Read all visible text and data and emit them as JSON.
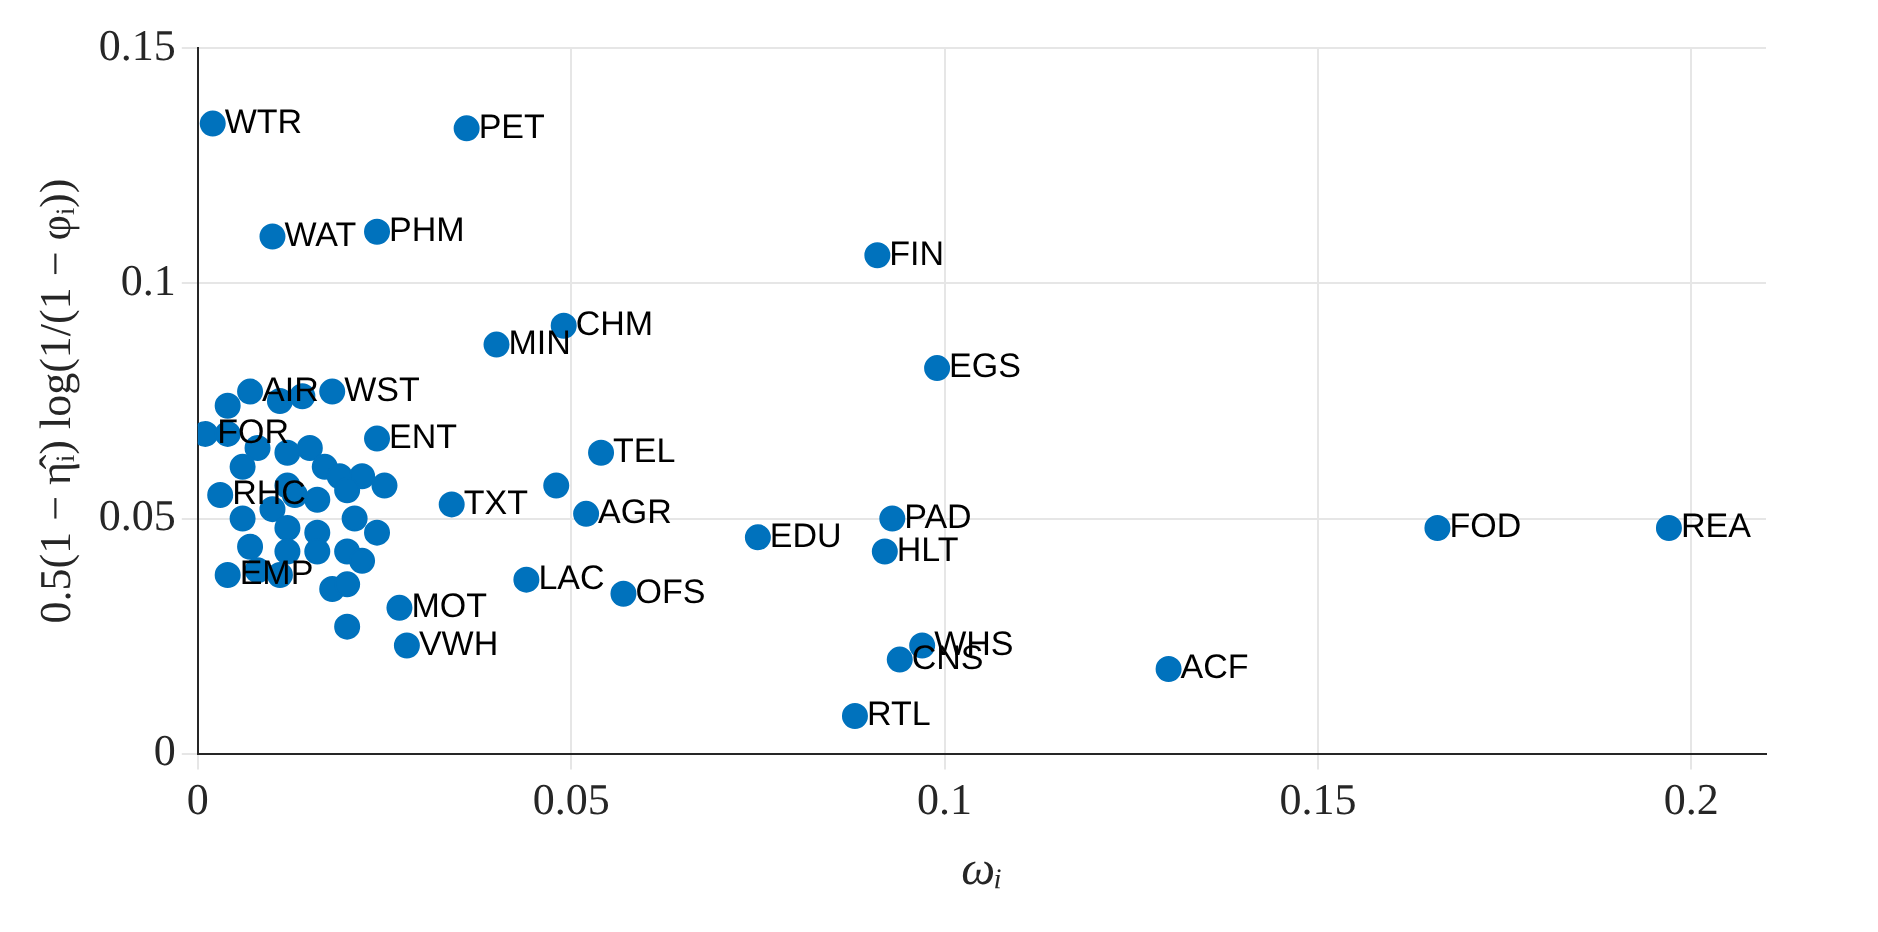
{
  "chart_data": {
    "type": "scatter",
    "xlabel": "ωᵢ",
    "ylabel": "0.5(1 − η̂ᵢ) log(1/(1 − φᵢ))",
    "x": [
      0.002,
      0.036,
      0.01,
      0.024,
      0.091,
      0.049,
      0.04,
      0.099,
      0.018,
      0.054,
      0.048,
      0.052,
      0.034,
      0.093,
      0.075,
      0.092,
      0.166,
      0.197,
      0.044,
      0.057,
      0.027,
      0.02,
      0.028,
      0.097,
      0.094,
      0.13,
      0.088,
      0.004,
      0.003,
      0.001,
      0.024,
      0.007,
      0.004,
      0.011,
      0.014,
      0.004,
      0.006,
      0.008,
      0.012,
      0.015,
      0.017,
      0.019,
      0.022,
      0.012,
      0.013,
      0.016,
      0.02,
      0.025,
      0.006,
      0.01,
      0.012,
      0.016,
      0.021,
      0.024,
      0.007,
      0.012,
      0.016,
      0.02,
      0.022,
      0.008,
      0.011,
      0.018,
      0.02
    ],
    "values": [
      0.134,
      0.133,
      0.11,
      0.111,
      0.106,
      0.091,
      0.087,
      0.082,
      0.077,
      0.064,
      0.057,
      0.051,
      0.053,
      0.05,
      0.046,
      0.043,
      0.048,
      0.048,
      0.037,
      0.034,
      0.031,
      0.027,
      0.023,
      0.023,
      0.02,
      0.018,
      0.008,
      0.038,
      0.055,
      0.068,
      0.067,
      0.077,
      0.074,
      0.075,
      0.076,
      0.068,
      0.061,
      0.065,
      0.064,
      0.065,
      0.061,
      0.059,
      0.059,
      0.057,
      0.055,
      0.054,
      0.056,
      0.057,
      0.05,
      0.052,
      0.048,
      0.047,
      0.05,
      0.047,
      0.044,
      0.043,
      0.043,
      0.043,
      0.041,
      0.039,
      0.038,
      0.035,
      0.036
    ],
    "color": "#0072bd",
    "marker": "circle",
    "grid": true,
    "xlim": [
      0,
      0.21
    ],
    "ylim": [
      0,
      0.15
    ],
    "xticks": [
      0,
      0.05,
      0.1,
      0.15,
      0.2
    ],
    "yticks": [
      0,
      0.05,
      0.1,
      0.15
    ],
    "annotations": [
      {
        "text": "WTR",
        "x": 0.002,
        "y": 0.134
      },
      {
        "text": "PET",
        "x": 0.036,
        "y": 0.133
      },
      {
        "text": "WAT",
        "x": 0.01,
        "y": 0.11
      },
      {
        "text": "PHM",
        "x": 0.024,
        "y": 0.111
      },
      {
        "text": "FIN",
        "x": 0.091,
        "y": 0.106
      },
      {
        "text": "CHM",
        "x": 0.049,
        "y": 0.091
      },
      {
        "text": "MIN",
        "x": 0.04,
        "y": 0.087
      },
      {
        "text": "EGS",
        "x": 0.099,
        "y": 0.082
      },
      {
        "text": "WST",
        "x": 0.018,
        "y": 0.077
      },
      {
        "text": "TEL",
        "x": 0.054,
        "y": 0.064
      },
      {
        "text": "AGR",
        "x": 0.052,
        "y": 0.051
      },
      {
        "text": "TXT",
        "x": 0.034,
        "y": 0.053
      },
      {
        "text": "PAD",
        "x": 0.093,
        "y": 0.05
      },
      {
        "text": "EDU",
        "x": 0.075,
        "y": 0.046
      },
      {
        "text": "HLT",
        "x": 0.092,
        "y": 0.043
      },
      {
        "text": "FOD",
        "x": 0.166,
        "y": 0.048
      },
      {
        "text": "REA",
        "x": 0.197,
        "y": 0.048
      },
      {
        "text": "LAC",
        "x": 0.044,
        "y": 0.037
      },
      {
        "text": "OFS",
        "x": 0.057,
        "y": 0.034
      },
      {
        "text": "MOT",
        "x": 0.027,
        "y": 0.031
      },
      {
        "text": "VWH",
        "x": 0.028,
        "y": 0.023
      },
      {
        "text": "WHS",
        "x": 0.097,
        "y": 0.023
      },
      {
        "text": "CNS",
        "x": 0.094,
        "y": 0.02
      },
      {
        "text": "ACF",
        "x": 0.13,
        "y": 0.018
      },
      {
        "text": "RTL",
        "x": 0.088,
        "y": 0.008
      },
      {
        "text": "EMP",
        "x": 0.004,
        "y": 0.038
      },
      {
        "text": "RHC",
        "x": 0.003,
        "y": 0.055
      },
      {
        "text": "FOR",
        "x": 0.001,
        "y": 0.068
      },
      {
        "text": "ENT",
        "x": 0.024,
        "y": 0.067
      },
      {
        "text": "AIR",
        "x": 0.007,
        "y": 0.077
      }
    ]
  }
}
